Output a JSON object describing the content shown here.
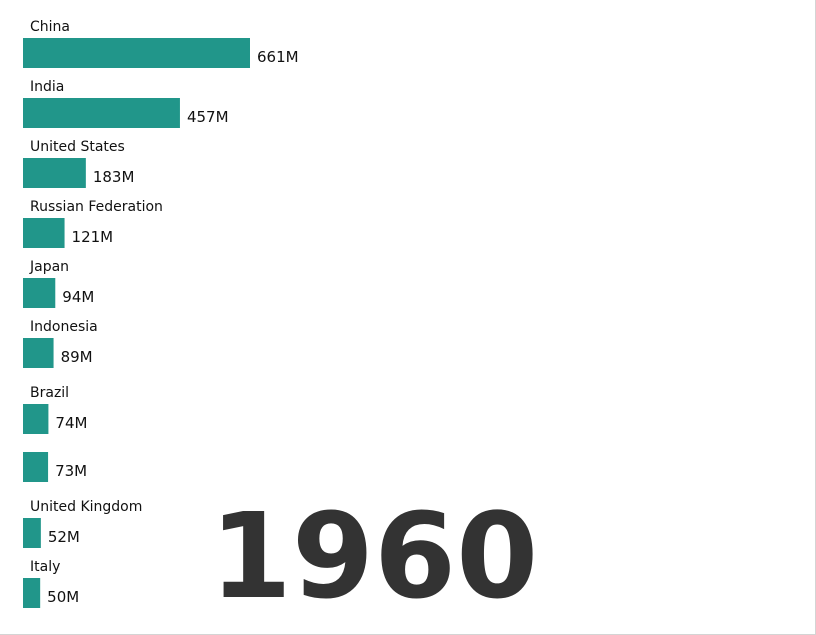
{
  "chart_data": {
    "type": "bar",
    "orientation": "horizontal",
    "categories": [
      "China",
      "India",
      "United States",
      "Russian Federation",
      "Japan",
      "Indonesia",
      "Brazil",
      "",
      "United Kingdom",
      "Italy"
    ],
    "values": [
      661,
      457,
      183,
      121,
      94,
      89,
      74,
      73,
      52,
      50
    ],
    "value_labels": [
      "661M",
      "457M",
      "183M",
      "121M",
      "94M",
      "89M",
      "74M",
      "73M",
      "52M",
      "50M"
    ],
    "year": "1960",
    "title": "",
    "xlabel": "",
    "ylabel": "",
    "xlim": [
      0,
      661
    ],
    "grid": false,
    "bar_color": "#21968a"
  }
}
